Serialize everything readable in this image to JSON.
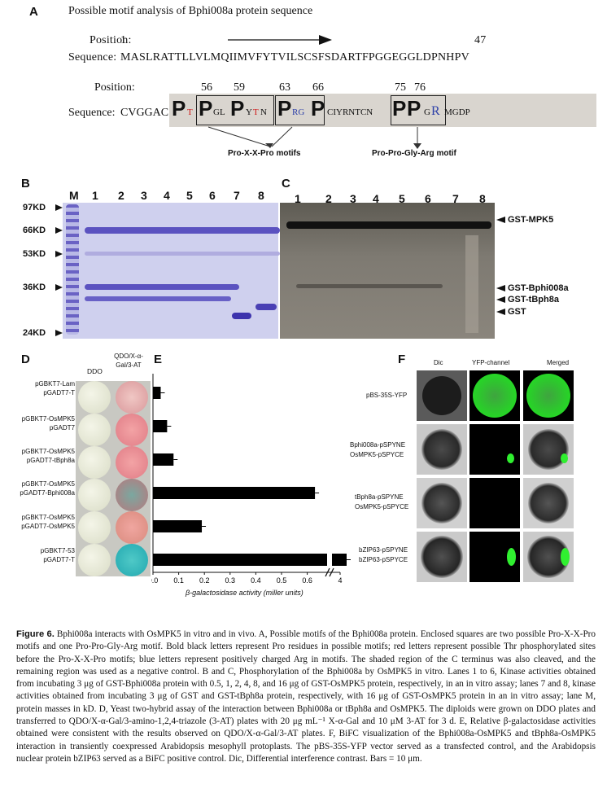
{
  "panel_a": {
    "letter": "A",
    "title": "Possible motif analysis of Bphi008a protein sequence",
    "position_label": "Position:",
    "pos_start": "1",
    "pos_end": "47",
    "sequence_label": "Sequence:",
    "sequence_1": "MASLRATTLLVLMQIIMVFYTVILSCSFSDARTFPGGEGGLDPNHPV",
    "position_label_2": "Position:",
    "pos_numbers": [
      "56",
      "59",
      "63",
      "66",
      "75",
      "76"
    ],
    "sequence_label_2": "Sequence:",
    "seq2_prefix": "CVGGAC",
    "seq2_mid": "CIYRNTCN",
    "seq2_suffix": "MGDP",
    "motif_label_1": "Pro-X-X-Pro motifs",
    "motif_label_2": "Pro-Pro-Gly-Arg motif"
  },
  "panel_b": {
    "letter": "B",
    "lanes": [
      "M",
      "1",
      "2",
      "3",
      "4",
      "5",
      "6",
      "7",
      "8"
    ],
    "markers": [
      "97KD",
      "66KD",
      "53KD",
      "36KD",
      "24KD"
    ]
  },
  "panel_c": {
    "letter": "C",
    "lanes": [
      "1",
      "2",
      "3",
      "4",
      "5",
      "6",
      "7",
      "8"
    ],
    "labels": [
      "GST-MPK5",
      "GST-Bphi008a",
      "GST-tBph8a",
      "GST"
    ]
  },
  "panel_d": {
    "letter": "D",
    "col1": "DDO",
    "col2": "QDO/X-α-Gal/3-AT",
    "rows": [
      [
        "pGBKT7-Lam",
        "pGADT7-T"
      ],
      [
        "pGBKT7-OsMPK5",
        "pGADT7"
      ],
      [
        "pGBKT7-OsMPK5",
        "pGADT7-tBph8a"
      ],
      [
        "pGBKT7-OsMPK5",
        "pGADT7-Bphi008a"
      ],
      [
        "pGBKT7-OsMPK5",
        "pGADT7-OsMPK5"
      ],
      [
        "pGBKT7-53",
        "pGADT7-T"
      ]
    ]
  },
  "panel_e": {
    "letter": "E",
    "xlabel": "β-galactosidase activity (miller units)"
  },
  "chart_data": {
    "type": "bar",
    "orientation": "horizontal",
    "categories": [
      "pGBKT7-Lam / pGADT7-T",
      "pGBKT7-OsMPK5 / pGADT7",
      "pGBKT7-OsMPK5 / pGADT7-tBph8a",
      "pGBKT7-OsMPK5 / pGADT7-Bphi008a",
      "pGBKT7-OsMPK5 / pGADT7-OsMPK5",
      "pGBKT7-53 / pGADT7-T"
    ],
    "values": [
      0.03,
      0.055,
      0.08,
      0.63,
      0.19,
      4
    ],
    "xlabel": "β-galactosidase activity (miller units)",
    "xticks": [
      "0.0",
      "0.1",
      "0.2",
      "0.3",
      "0.4",
      "0.5",
      "0.6",
      "4"
    ],
    "xlim": [
      0,
      0.7
    ],
    "axis_break": true
  },
  "panel_f": {
    "letter": "F",
    "cols": [
      "Dic",
      "YFP-channel",
      "Merged"
    ],
    "rows": [
      [
        "pBS-35S-YFP"
      ],
      [
        "Bphi008a-pSPYNE",
        "OsMPK5-pSPYCE"
      ],
      [
        "tBph8a-pSPYNE",
        "OsMPK5-pSPYCE"
      ],
      [
        "bZIP63-pSPYNE",
        "bZIP63-pSPYCE"
      ]
    ]
  },
  "caption": {
    "label": "Figure 6.",
    "text": "Bphi008a interacts with OsMPK5 in vitro and in vivo. A, Possible motifs of the Bphi008a protein. Enclosed squares are two possible Pro-X-X-Pro motifs and one Pro-Pro-Gly-Arg motif. Bold black letters represent Pro residues in possible motifs; red letters represent possible Thr phosphorylated sites before the Pro-X-X-Pro motifs; blue letters represent positively charged Arg in motifs. The shaded region of the C terminus was also cleaved, and the remaining region was used as a negative control. B and C, Phosphorylation of the Bphi008a by OsMPK5 in vitro. Lanes 1 to 6, Kinase activities obtained from incubating 3 μg of GST-Bphi008a protein with 0.5, 1, 2, 4, 8, and 16 μg of GST-OsMPK5 protein, respectively, in an in vitro assay; lanes 7 and 8, kinase activities obtained from incubating 3 μg of GST and GST-tBph8a protein, respectively, with 16 μg of GST-OsMPK5 protein in an in vitro assay; lane M, protein masses in kD. D, Yeast two-hybrid assay of the interaction between Bphi008a or tBph8a and OsMPK5. The diploids were grown on DDO plates and transferred to QDO/X-α-Gal/3-amino-1,2,4-triazole (3-AT) plates with 20 μg mL⁻¹ X-α-Gal and 10 μM 3-AT for 3 d. E, Relative β-galactosidase activities obtained were consistent with the results observed on QDO/X-α-Gal/3-AT plates. F, BiFC visualization of the Bphi008a-OsMPK5 and tBph8a-OsMPK5 interaction in transiently coexpressed Arabidopsis mesophyll protoplasts. The pBS-35S-YFP vector served as a transfected control, and the Arabidopsis nuclear protein bZIP63 served as a BiFC positive control. Dic, Differential interference contrast. Bars = 10 μm."
  }
}
